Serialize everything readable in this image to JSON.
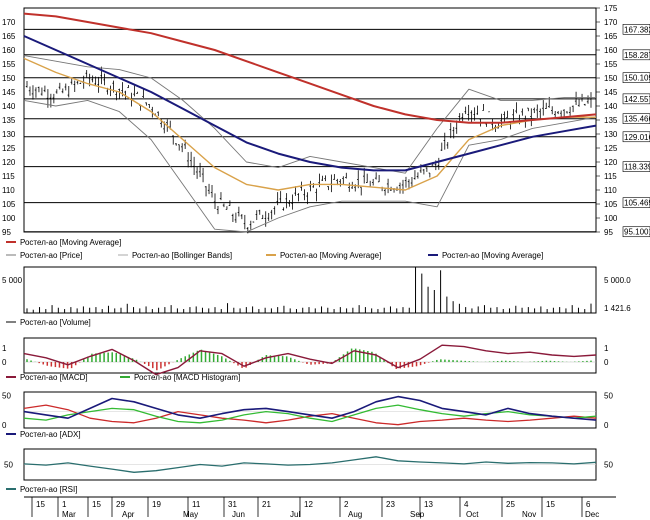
{
  "chart_data": {
    "type": "line",
    "x_day_labels": [
      "15",
      "1",
      "15",
      "29",
      "19",
      "11",
      "31",
      "21",
      "12",
      "2",
      "23",
      "13",
      "4",
      "25",
      "15",
      "6"
    ],
    "x_month_labels": [
      "Mar",
      "Apr",
      "May",
      "Jun",
      "Jul",
      "Aug",
      "Sep",
      "Oct",
      "Nov",
      "Dec"
    ],
    "price_panel": {
      "yticks": [
        95,
        100,
        105,
        110,
        115,
        120,
        125,
        130,
        135,
        140,
        145,
        150,
        155,
        160,
        165,
        170,
        175
      ],
      "ylim": [
        95,
        175
      ],
      "level_labels": [
        "167.382",
        "158.287",
        "150.109",
        "142.557",
        "135.466",
        "129.016",
        "118.339",
        "105.469",
        "95.1001"
      ],
      "level_values": [
        167.382,
        158.287,
        150.109,
        142.557,
        135.466,
        129.016,
        118.339,
        105.469,
        95.1001
      ],
      "legend": [
        "Ростел-ао [Moving Average]",
        "Ростел-ао [Price]",
        "Ростел-ао [Bollinger Bands]",
        "Ростел-ао [Moving Average]",
        "Ростел-ао [Moving Average]"
      ],
      "ma_long": [
        173,
        172,
        170,
        168,
        166,
        163,
        160,
        156,
        152,
        148,
        144,
        140,
        137,
        135,
        134,
        134,
        135,
        136,
        137
      ],
      "ma_mid": [
        165,
        160,
        155,
        150,
        145,
        139,
        133,
        127,
        123,
        120,
        118,
        117,
        117,
        120,
        123,
        126,
        129,
        131,
        133
      ],
      "ma_short": [
        157,
        152,
        148,
        145,
        138,
        128,
        118,
        112,
        110,
        112,
        112,
        111,
        110,
        115,
        128,
        133,
        135,
        136,
        136
      ],
      "price_close": [
        147,
        144,
        150,
        146,
        140,
        125,
        106,
        98,
        104,
        110,
        114,
        112,
        112,
        118,
        140,
        134,
        137,
        139,
        141
      ],
      "bb_upper": [
        158,
        156,
        154,
        153,
        150,
        142,
        132,
        120,
        118,
        122,
        120,
        118,
        116,
        132,
        146,
        142,
        142,
        143,
        143
      ],
      "bb_lower": [
        142,
        140,
        142,
        138,
        128,
        112,
        96,
        95,
        100,
        104,
        106,
        106,
        106,
        104,
        126,
        128,
        132,
        134,
        136
      ]
    },
    "volume_panel": {
      "legend": "Ростел-ао [Volume]",
      "yticks": [
        "5 000.0",
        "0"
      ],
      "left_tick": "5 000",
      "last_value": "1 421.6",
      "values": [
        700,
        500,
        900,
        600,
        1200,
        800,
        600,
        900,
        700,
        1000,
        800,
        900,
        600,
        1100,
        700,
        800,
        1400,
        900,
        700,
        1000,
        600,
        800,
        900,
        1200,
        700,
        600,
        900,
        1000,
        800,
        700,
        900,
        600,
        1500,
        800,
        700,
        900,
        1000,
        600,
        800,
        700,
        900,
        1100,
        700,
        600,
        800,
        900,
        700,
        1000,
        800,
        600,
        900,
        700,
        800,
        1200,
        900,
        700,
        600,
        800,
        1000,
        700,
        900,
        800,
        7000,
        6000,
        4000,
        3500,
        6500,
        2500,
        1800,
        1400,
        900,
        700,
        1000,
        1200,
        800,
        900,
        600,
        700,
        1100,
        800,
        900,
        700,
        1000,
        600,
        800,
        900,
        700,
        1200,
        800,
        600,
        1421
      ]
    },
    "macd_panel": {
      "legend": [
        "Ростел-ао [MACD]",
        "Ростел-ао [MACD Histogram]"
      ],
      "yticks": [
        "1",
        "0"
      ],
      "macd": [
        0.6,
        0.3,
        -0.2,
        0.4,
        0.9,
        0.1,
        -0.9,
        -0.4,
        0.8,
        0.6,
        -0.3,
        0.3,
        0.6,
        0.2,
        -0.1,
        0.8,
        0.5,
        -0.4,
        0.2,
        1.2,
        1.1,
        0.8,
        0.6,
        0.7,
        0.5,
        0.4,
        0.5
      ],
      "histogram": [
        0.2,
        -0.3,
        -0.5,
        0.6,
        0.7,
        0.2,
        -0.6,
        0.2,
        0.9,
        0.4,
        -0.5,
        0.5,
        0.4,
        -0.2,
        -0.1,
        1.0,
        0.7,
        -0.5,
        -0.3,
        0.2,
        0.1,
        0.0,
        0.1,
        0.0,
        0.1,
        0.0,
        0.1
      ]
    },
    "adx_panel": {
      "legend": "Ростел-ао [ADX]",
      "yticks": [
        "50",
        "0"
      ],
      "adx": [
        25,
        20,
        15,
        30,
        45,
        40,
        30,
        20,
        15,
        22,
        28,
        30,
        25,
        20,
        15,
        25,
        40,
        48,
        42,
        30,
        25,
        20,
        30,
        22,
        18,
        15,
        12
      ],
      "plus_di": [
        15,
        12,
        20,
        25,
        30,
        28,
        18,
        10,
        8,
        12,
        20,
        25,
        22,
        15,
        10,
        20,
        30,
        35,
        28,
        22,
        18,
        22,
        25,
        20,
        18,
        15,
        18
      ],
      "minus_di": [
        30,
        35,
        28,
        15,
        10,
        8,
        15,
        25,
        20,
        15,
        12,
        8,
        12,
        18,
        22,
        15,
        8,
        5,
        10,
        12,
        15,
        12,
        10,
        12,
        15,
        18,
        15
      ]
    },
    "rsi_panel": {
      "legend": "Ростел-ао [RSI]",
      "yticks": [
        "50"
      ],
      "rsi": [
        52,
        48,
        55,
        45,
        35,
        25,
        30,
        40,
        50,
        45,
        55,
        52,
        48,
        50,
        55,
        65,
        75,
        62,
        58,
        55,
        52,
        58,
        54,
        56,
        55,
        52,
        57
      ]
    }
  }
}
